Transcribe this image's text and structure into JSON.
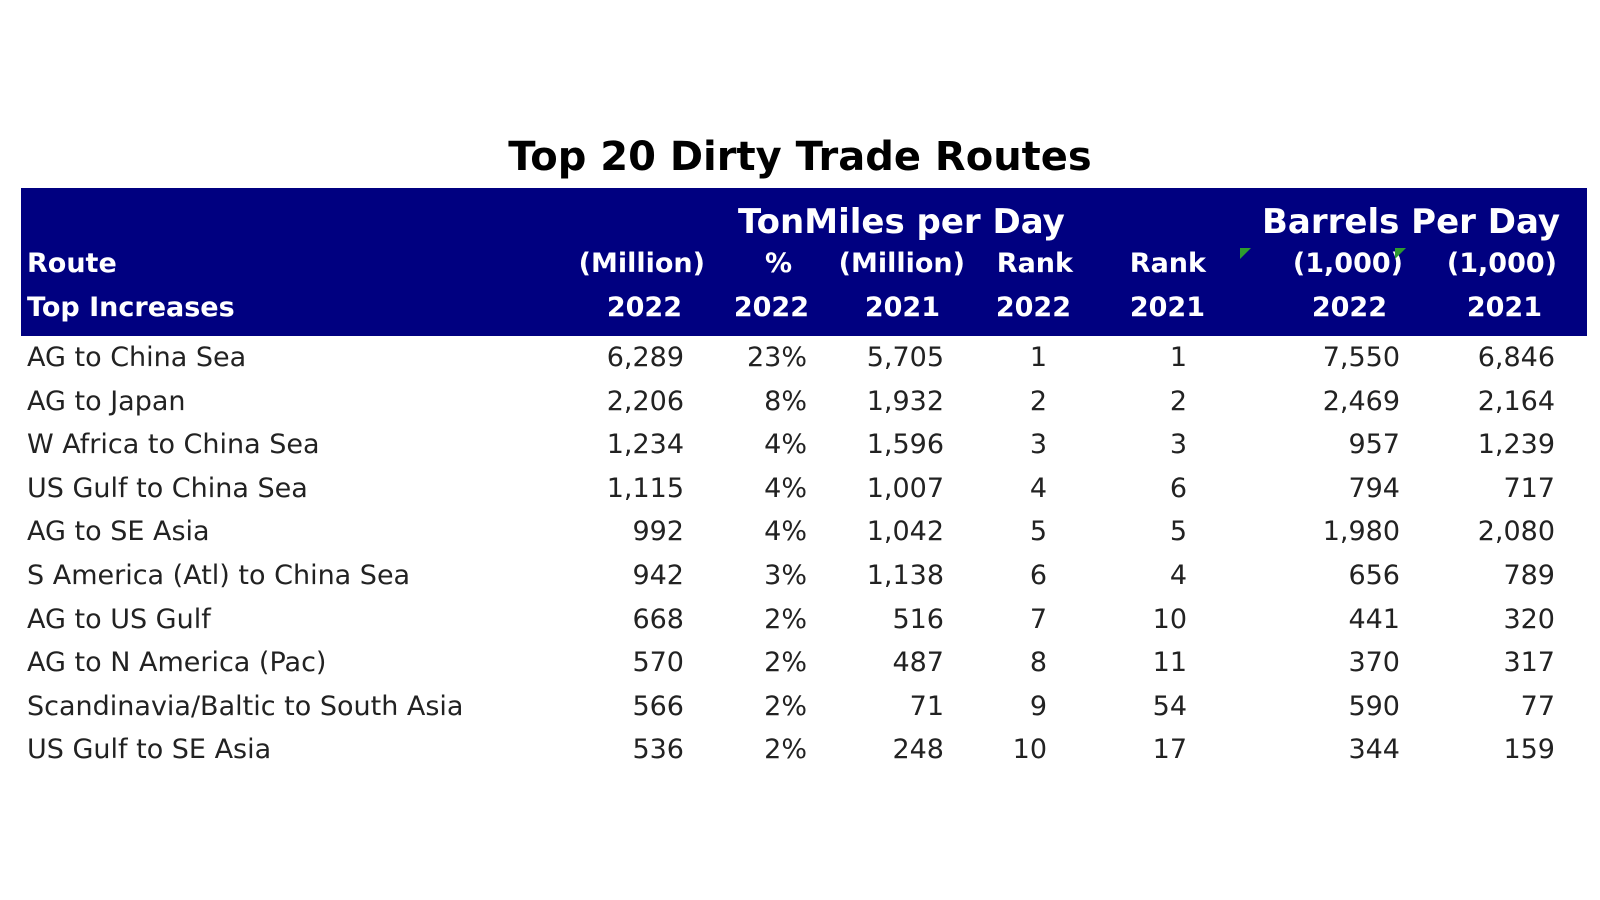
{
  "title": "Top 20 Dirty Trade Routes",
  "colors": {
    "header_bg": "#000080",
    "header_text": "#ffffff",
    "marker": "#2e9b2e"
  },
  "header": {
    "group_tonmiles": "TonMiles per Day",
    "group_barrels": "Barrels Per Day",
    "route_l1": "Route",
    "route_l2": "Top Increases",
    "tm2022_l1": "(Million)",
    "tm2022_l2": "2022",
    "pct_l1": "%",
    "pct_l2": "2022",
    "tm2021_l1": "(Million)",
    "tm2021_l2": "2021",
    "rank2022_l1": "Rank",
    "rank2022_l2": "2022",
    "rank2021_l1": "Rank",
    "rank2021_l2": "2021",
    "bpd2022_l1": "(1,000)",
    "bpd2022_l2": "2022",
    "bpd2021_l1": "(1,000)",
    "bpd2021_l2": "2021"
  },
  "chart_data": {
    "type": "table",
    "title": "Top 20 Dirty Trade Routes",
    "columns": [
      "Route",
      "TonMiles per Day (Million) 2022",
      "% 2022",
      "TonMiles per Day (Million) 2021",
      "Rank 2022",
      "Rank 2021",
      "Barrels Per Day (1,000) 2022",
      "Barrels Per Day (1,000) 2021"
    ],
    "rows": [
      [
        "AG to China Sea",
        "6,289",
        "23%",
        "5,705",
        "1",
        "1",
        "7,550",
        "6,846"
      ],
      [
        "AG to Japan",
        "2,206",
        "8%",
        "1,932",
        "2",
        "2",
        "2,469",
        "2,164"
      ],
      [
        "W Africa to China Sea",
        "1,234",
        "4%",
        "1,596",
        "3",
        "3",
        "957",
        "1,239"
      ],
      [
        "US Gulf to China Sea",
        "1,115",
        "4%",
        "1,007",
        "4",
        "6",
        "794",
        "717"
      ],
      [
        "AG to SE Asia",
        "992",
        "4%",
        "1,042",
        "5",
        "5",
        "1,980",
        "2,080"
      ],
      [
        "S America (Atl) to China Sea",
        "942",
        "3%",
        "1,138",
        "6",
        "4",
        "656",
        "789"
      ],
      [
        "AG to US Gulf",
        "668",
        "2%",
        "516",
        "7",
        "10",
        "441",
        "320"
      ],
      [
        "AG to N America (Pac)",
        "570",
        "2%",
        "487",
        "8",
        "11",
        "370",
        "317"
      ],
      [
        "Scandinavia/Baltic to South Asia",
        "566",
        "2%",
        "71",
        "9",
        "54",
        "590",
        "77"
      ],
      [
        "US Gulf to SE Asia",
        "536",
        "2%",
        "248",
        "10",
        "17",
        "344",
        "159"
      ]
    ]
  }
}
